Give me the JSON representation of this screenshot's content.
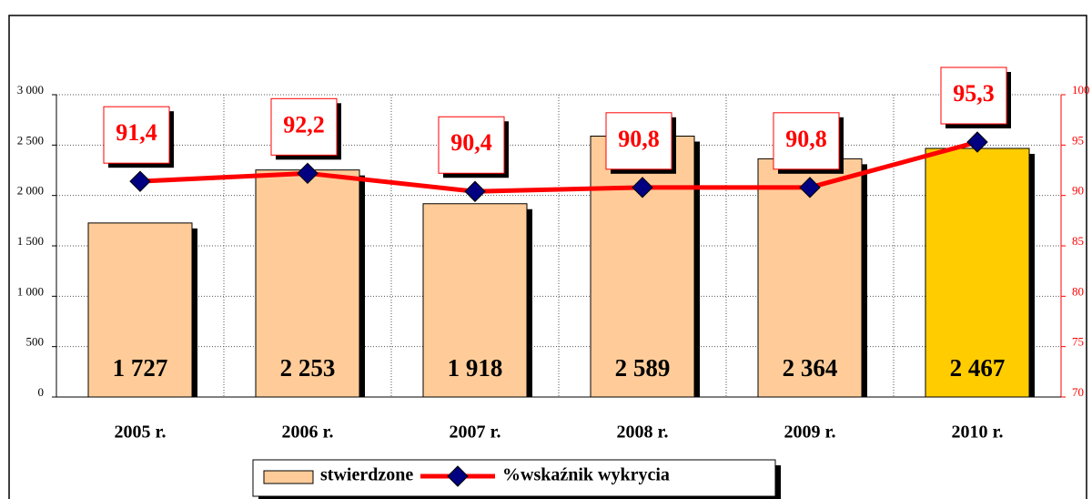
{
  "chart_data": {
    "type": "bar",
    "categories": [
      "2005 r.",
      "2006 r.",
      "2007 r.",
      "2008 r.",
      "2009 r.",
      "2010 r."
    ],
    "series": [
      {
        "name": "stwierdzone",
        "color": "#ffcc99",
        "colors": [
          "#ffcc99",
          "#ffcc99",
          "#ffcc99",
          "#ffcc99",
          "#ffcc99",
          "#ffcc00"
        ],
        "values": [
          1727,
          2253,
          1918,
          2589,
          2364,
          2467
        ],
        "value_labels": [
          "1 727",
          "2 253",
          "1 918",
          "2 589",
          "2 364",
          "2 467"
        ]
      },
      {
        "name": "%wskaźnik wykrycia",
        "type": "line",
        "axis": "y2",
        "color": "#ff0000",
        "marker_color": "#000080",
        "values": [
          91.4,
          92.2,
          90.4,
          90.8,
          90.8,
          95.3
        ],
        "value_labels": [
          "91,4",
          "92,2",
          "90,4",
          "90,8",
          "90,8",
          "95,3"
        ]
      }
    ],
    "ylim": [
      0,
      3000
    ],
    "yticks": [
      0,
      500,
      {
        "value": 1000,
        "label": "1 000"
      },
      {
        "value": 1500,
        "label": "1 500"
      },
      {
        "value": 2000,
        "label": "2 000"
      },
      {
        "value": 2500,
        "label": "2 500"
      },
      {
        "value": 3000,
        "label": "3 000"
      }
    ],
    "y2lim": [
      70,
      100
    ],
    "y2ticks": [
      70,
      75,
      80,
      85,
      90,
      95,
      100
    ],
    "grid": true
  }
}
